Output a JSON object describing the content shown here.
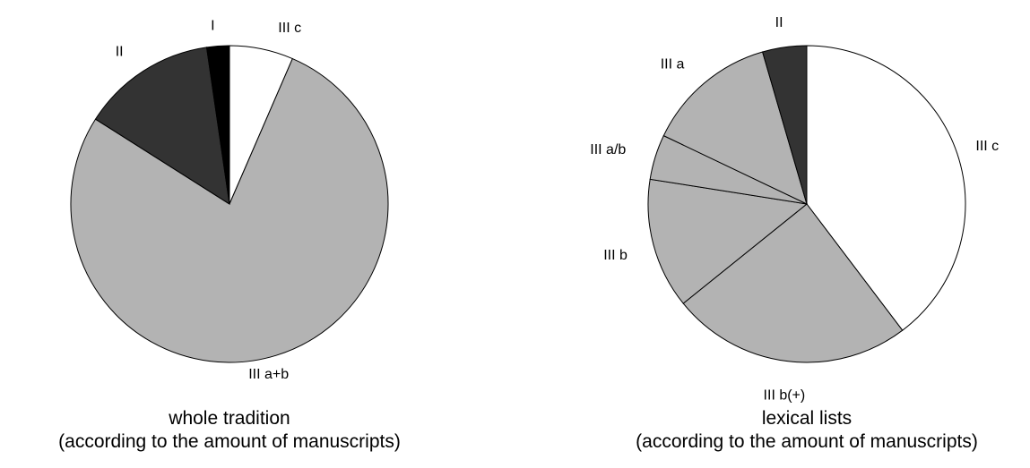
{
  "chart_data": [
    {
      "type": "pie",
      "title": "whole tradition",
      "subtitle": "(according to the amount of manuscripts)",
      "slices": [
        {
          "label": "III c",
          "value": 6.5,
          "color": "#ffffff"
        },
        {
          "label": "III a+b",
          "value": 77.5,
          "color": "#b3b3b3"
        },
        {
          "label": "II",
          "value": 13.7,
          "color": "#333333"
        },
        {
          "label": "I",
          "value": 2.3,
          "color": "#000000"
        }
      ]
    },
    {
      "type": "pie",
      "title": "lexical lists",
      "subtitle": "(according to the amount of manuscripts)",
      "slices": [
        {
          "label": "III c",
          "value": 39.7,
          "color": "#ffffff"
        },
        {
          "label": "III b(+)",
          "value": 24.5,
          "color": "#b3b3b3"
        },
        {
          "label": "III b",
          "value": 13.3,
          "color": "#b3b3b3"
        },
        {
          "label": "III a/b",
          "value": 4.6,
          "color": "#b3b3b3"
        },
        {
          "label": "III a",
          "value": 13.4,
          "color": "#b3b3b3"
        },
        {
          "label": "II",
          "value": 4.5,
          "color": "#333333"
        }
      ]
    }
  ]
}
